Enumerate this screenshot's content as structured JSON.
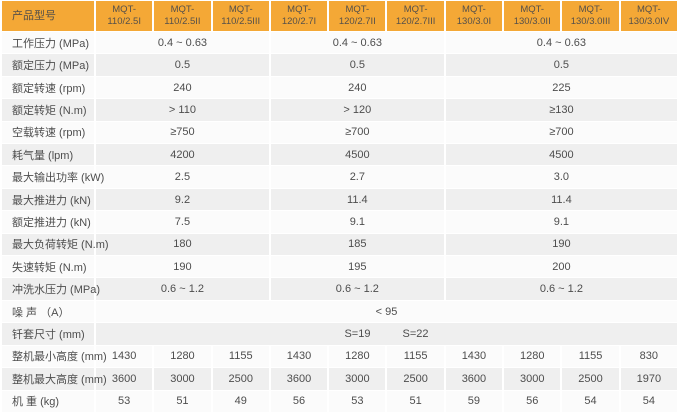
{
  "colors": {
    "header_bg": "#F4A836",
    "header_text": "#55504A",
    "row_light": "#FBFBFB",
    "row_dark": "#EFEFEF",
    "text": "#4D4D4D"
  },
  "table": {
    "corner_label": "产品型号",
    "columns": [
      "MQT-\n110/2.5I",
      "MQT-\n110/2.5II",
      "MQT-\n110/2.5III",
      "MQT-\n120/2.7I",
      "MQT-\n120/2.7II",
      "MQT-\n120/2.7III",
      "MQT-\n130/3.0I",
      "MQT-\n130/3.0II",
      "MQT-\n130/3.0III",
      "MQT-\n130/3.0IV"
    ],
    "rows": [
      {
        "label": "工作压力 (MPa)",
        "cells": [
          {
            "span": 3,
            "text": "0.4 ~ 0.63"
          },
          {
            "span": 3,
            "text": "0.4 ~ 0.63"
          },
          {
            "span": 4,
            "text": "0.4 ~ 0.63"
          }
        ]
      },
      {
        "label": "额定压力 (MPa)",
        "cells": [
          {
            "span": 3,
            "text": "0.5"
          },
          {
            "span": 3,
            "text": "0.5"
          },
          {
            "span": 4,
            "text": "0.5"
          }
        ]
      },
      {
        "label": "额定转速 (rpm)",
        "cells": [
          {
            "span": 3,
            "text": "240"
          },
          {
            "span": 3,
            "text": "240"
          },
          {
            "span": 4,
            "text": "225"
          }
        ]
      },
      {
        "label": "额定转矩 (N.m)",
        "cells": [
          {
            "span": 3,
            "text": "> 110"
          },
          {
            "span": 3,
            "text": "> 120"
          },
          {
            "span": 4,
            "text": "≥130"
          }
        ]
      },
      {
        "label": "空载转速 (rpm)",
        "cells": [
          {
            "span": 3,
            "text": "≥750"
          },
          {
            "span": 3,
            "text": "≥700"
          },
          {
            "span": 4,
            "text": "≥700"
          }
        ]
      },
      {
        "label": "耗气量 (lpm)",
        "cells": [
          {
            "span": 3,
            "text": "4200"
          },
          {
            "span": 3,
            "text": "4500"
          },
          {
            "span": 4,
            "text": "4500"
          }
        ]
      },
      {
        "label": "最大输出功率 (kW)",
        "cells": [
          {
            "span": 3,
            "text": "2.5"
          },
          {
            "span": 3,
            "text": "2.7"
          },
          {
            "span": 4,
            "text": "3.0"
          }
        ]
      },
      {
        "label": "最大推进力 (kN)",
        "cells": [
          {
            "span": 3,
            "text": "9.2"
          },
          {
            "span": 3,
            "text": "11.4"
          },
          {
            "span": 4,
            "text": "11.4"
          }
        ]
      },
      {
        "label": "额定推进力 (kN)",
        "cells": [
          {
            "span": 3,
            "text": "7.5"
          },
          {
            "span": 3,
            "text": "9.1"
          },
          {
            "span": 4,
            "text": "9.1"
          }
        ]
      },
      {
        "label": "最大负荷转矩 (N.m)",
        "cells": [
          {
            "span": 3,
            "text": "180"
          },
          {
            "span": 3,
            "text": "185"
          },
          {
            "span": 4,
            "text": "190"
          }
        ]
      },
      {
        "label": "失速转矩 (N.m)",
        "cells": [
          {
            "span": 3,
            "text": "190"
          },
          {
            "span": 3,
            "text": "195"
          },
          {
            "span": 4,
            "text": "200"
          }
        ]
      },
      {
        "label": "冲洗水压力 (MPa)",
        "cells": [
          {
            "span": 3,
            "text": "0.6 ~ 1.2"
          },
          {
            "span": 3,
            "text": "0.6 ~ 1.2"
          },
          {
            "span": 4,
            "text": "0.6 ~ 1.2"
          }
        ]
      },
      {
        "label": "噪 声 （A）",
        "cells": [
          {
            "span": 10,
            "text": "< 95"
          }
        ]
      },
      {
        "label": "钎套尺寸 (mm)",
        "type": "positioned",
        "items": [
          {
            "text": "S=19",
            "col": 5
          },
          {
            "text": "S=22",
            "col": 6
          }
        ]
      },
      {
        "label": "整机最小高度 (mm)",
        "cells": [
          {
            "span": 1,
            "text": "1430"
          },
          {
            "span": 1,
            "text": "1280"
          },
          {
            "span": 1,
            "text": "1155"
          },
          {
            "span": 1,
            "text": "1430"
          },
          {
            "span": 1,
            "text": "1280"
          },
          {
            "span": 1,
            "text": "1155"
          },
          {
            "span": 1,
            "text": "1430"
          },
          {
            "span": 1,
            "text": "1280"
          },
          {
            "span": 1,
            "text": "1155"
          },
          {
            "span": 1,
            "text": "830"
          }
        ]
      },
      {
        "label": "整机最大高度 (mm)",
        "cells": [
          {
            "span": 1,
            "text": "3600"
          },
          {
            "span": 1,
            "text": "3000"
          },
          {
            "span": 1,
            "text": "2500"
          },
          {
            "span": 1,
            "text": "3600"
          },
          {
            "span": 1,
            "text": "3000"
          },
          {
            "span": 1,
            "text": "2500"
          },
          {
            "span": 1,
            "text": "3600"
          },
          {
            "span": 1,
            "text": "3000"
          },
          {
            "span": 1,
            "text": "2500"
          },
          {
            "span": 1,
            "text": "1970"
          }
        ]
      },
      {
        "label": "机 重 (kg)",
        "cells": [
          {
            "span": 1,
            "text": "53"
          },
          {
            "span": 1,
            "text": "51"
          },
          {
            "span": 1,
            "text": "49"
          },
          {
            "span": 1,
            "text": "56"
          },
          {
            "span": 1,
            "text": "53"
          },
          {
            "span": 1,
            "text": "51"
          },
          {
            "span": 1,
            "text": "59"
          },
          {
            "span": 1,
            "text": "56"
          },
          {
            "span": 1,
            "text": "54"
          },
          {
            "span": 1,
            "text": "54"
          }
        ]
      }
    ]
  }
}
